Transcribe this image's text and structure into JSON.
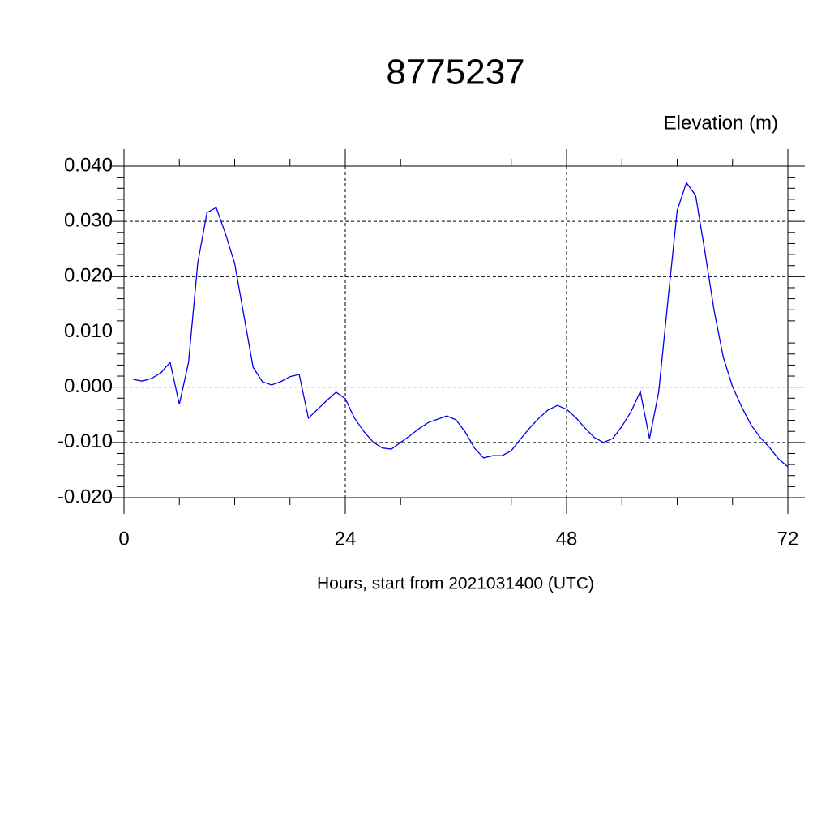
{
  "chart_data": {
    "type": "line",
    "title": "8775237",
    "subtitle": "Elevation (m)",
    "x_label": "Hours, start from 2021031400 (UTC)",
    "x": [
      1,
      2,
      3,
      4,
      5,
      6,
      7,
      8,
      9,
      10,
      11,
      12,
      13,
      14,
      15,
      16,
      17,
      18,
      19,
      20,
      21,
      22,
      23,
      24,
      25,
      26,
      27,
      28,
      29,
      30,
      31,
      32,
      33,
      34,
      35,
      36,
      37,
      38,
      39,
      40,
      41,
      42,
      43,
      44,
      45,
      46,
      47,
      48,
      49,
      50,
      51,
      52,
      53,
      54,
      55,
      56,
      57,
      58,
      59,
      60,
      61,
      62,
      63,
      64,
      65,
      66,
      67,
      68,
      69,
      70,
      71,
      72
    ],
    "series": [
      {
        "color": "#0000ee",
        "values": [
          0.0014,
          0.0011,
          0.0016,
          0.0026,
          0.0045,
          -0.0031,
          0.0045,
          0.0225,
          0.0316,
          0.0325,
          0.0278,
          0.0224,
          0.013,
          0.0036,
          0.001,
          0.0004,
          0.001,
          0.0019,
          0.0023,
          -0.0056,
          -0.004,
          -0.0024,
          -0.0009,
          -0.0021,
          -0.0056,
          -0.008,
          -0.0099,
          -0.011,
          -0.0112,
          -0.01,
          -0.0088,
          -0.0075,
          -0.0064,
          -0.0058,
          -0.0052,
          -0.0059,
          -0.0081,
          -0.011,
          -0.0128,
          -0.0124,
          -0.0124,
          -0.0115,
          -0.0094,
          -0.0074,
          -0.0056,
          -0.0041,
          -0.0033,
          -0.004,
          -0.0055,
          -0.0074,
          -0.0091,
          -0.01,
          -0.0093,
          -0.0071,
          -0.0044,
          -0.0008,
          -0.0093,
          -0.0008,
          0.0158,
          0.032,
          0.037,
          0.0347,
          0.0246,
          0.0139,
          0.0054,
          0.0001,
          -0.0036,
          -0.0068,
          -0.0091,
          -0.0109,
          -0.013,
          -0.0144
        ]
      }
    ],
    "xlim": [
      0,
      72
    ],
    "xticks": [
      0,
      24,
      48,
      72
    ],
    "ylim": [
      -0.02,
      0.04
    ],
    "yticks": [
      {
        "value": -0.02,
        "label": "-0.020"
      },
      {
        "value": -0.01,
        "label": "-0.010"
      },
      {
        "value": 0,
        "label": "0.000"
      },
      {
        "value": 0.01,
        "label": "0.010"
      },
      {
        "value": 0.02,
        "label": "0.020"
      },
      {
        "value": 0.03,
        "label": "0.030"
      },
      {
        "value": 0.04,
        "label": "0.040"
      }
    ],
    "grid": true
  }
}
